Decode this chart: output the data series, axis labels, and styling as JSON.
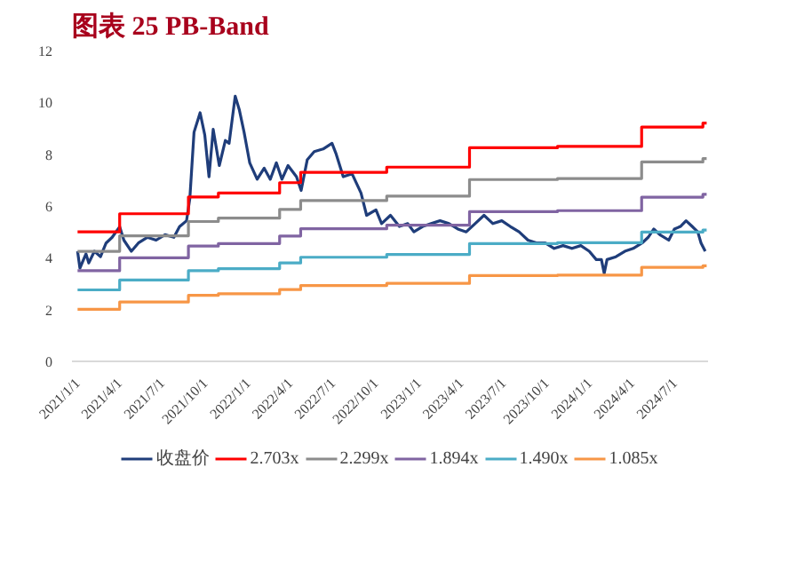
{
  "chart_data": {
    "type": "line",
    "title": "图表 25 PB-Band",
    "x": [
      "2021-01-01",
      "2021-01-06",
      "2021-01-19",
      "2021-01-25",
      "2021-02-06",
      "2021-02-19",
      "2021-03-03",
      "2021-03-16",
      "2021-04-01",
      "2021-04-10",
      "2021-04-26",
      "2021-05-11",
      "2021-05-30",
      "2021-06-18",
      "2021-07-07",
      "2021-07-26",
      "2021-08-07",
      "2021-08-22",
      "2021-08-29",
      "2021-09-07",
      "2021-09-20",
      "2021-09-30",
      "2021-10-09",
      "2021-10-18",
      "2021-10-31",
      "2021-11-13",
      "2021-11-21",
      "2021-12-04",
      "2021-12-13",
      "2021-12-23",
      "2022-01-04",
      "2022-01-20",
      "2022-02-04",
      "2022-02-17",
      "2022-03-02",
      "2022-03-14",
      "2022-03-27",
      "2022-04-14",
      "2022-04-24",
      "2022-05-07",
      "2022-05-22",
      "2022-06-10",
      "2022-06-29",
      "2022-07-08",
      "2022-07-23",
      "2022-08-11",
      "2022-08-30",
      "2022-09-11",
      "2022-10-01",
      "2022-10-13",
      "2022-11-01",
      "2022-11-20",
      "2022-12-08",
      "2022-12-21",
      "2023-01-09",
      "2023-01-27",
      "2023-02-15",
      "2023-03-06",
      "2023-03-25",
      "2023-04-12",
      "2023-05-01",
      "2023-05-20",
      "2023-06-08",
      "2023-06-27",
      "2023-07-15",
      "2023-08-03",
      "2023-08-22",
      "2023-09-10",
      "2023-09-28",
      "2023-10-17",
      "2023-11-05",
      "2023-11-24",
      "2023-12-13",
      "2023-12-31",
      "2024-01-15",
      "2024-01-26",
      "2024-02-01",
      "2024-02-07",
      "2024-02-26",
      "2024-03-16",
      "2024-04-03",
      "2024-04-22",
      "2024-05-05",
      "2024-05-17",
      "2024-05-30",
      "2024-06-18",
      "2024-06-30",
      "2024-07-13",
      "2024-07-25",
      "2024-08-07",
      "2024-08-19",
      "2024-08-26",
      "2024-09-04"
    ],
    "series": [
      {
        "name": "收盘价",
        "color": "#1f3d7a",
        "values": [
          4.25,
          3.6,
          4.15,
          3.8,
          4.25,
          4.04,
          4.57,
          4.79,
          5.2,
          4.68,
          4.25,
          4.57,
          4.79,
          4.68,
          4.89,
          4.79,
          5.2,
          5.43,
          6.28,
          8.85,
          9.6,
          8.74,
          7.13,
          8.96,
          7.56,
          8.53,
          8.42,
          10.24,
          9.7,
          8.85,
          7.67,
          7.03,
          7.46,
          7.03,
          7.67,
          7.03,
          7.56,
          7.13,
          6.6,
          7.78,
          8.1,
          8.2,
          8.42,
          8.0,
          7.13,
          7.24,
          6.5,
          5.64,
          5.85,
          5.32,
          5.64,
          5.21,
          5.32,
          5.0,
          5.21,
          5.32,
          5.43,
          5.32,
          5.11,
          5.0,
          5.32,
          5.64,
          5.32,
          5.43,
          5.21,
          5.0,
          4.68,
          4.57,
          4.57,
          4.36,
          4.47,
          4.36,
          4.47,
          4.25,
          3.93,
          3.93,
          3.4,
          3.93,
          4.04,
          4.25,
          4.36,
          4.57,
          4.79,
          5.11,
          4.89,
          4.68,
          5.11,
          5.21,
          5.43,
          5.21,
          5.0,
          4.57,
          4.25
        ]
      },
      {
        "name": "2.703x",
        "type": "step",
        "color": "#ff0000",
        "x": [
          "2021-01-01",
          "2021-04-01",
          "2021-08-26",
          "2021-10-29",
          "2022-03-09",
          "2022-04-23",
          "2022-10-24",
          "2023-04-19",
          "2023-10-24",
          "2024-04-21",
          "2024-08-30",
          "2024-09-07"
        ],
        "values": [
          5.0,
          5.7,
          6.35,
          6.5,
          6.9,
          7.3,
          7.5,
          8.25,
          8.3,
          9.05,
          9.2,
          9.2
        ]
      },
      {
        "name": "2.299x",
        "type": "step",
        "color": "#8c8c8c",
        "x": [
          "2021-01-01",
          "2021-04-01",
          "2021-08-26",
          "2021-10-29",
          "2022-03-09",
          "2022-04-23",
          "2022-10-24",
          "2023-04-19",
          "2023-10-24",
          "2024-04-21",
          "2024-08-30",
          "2024-09-07"
        ],
        "values": [
          4.25,
          4.85,
          5.4,
          5.53,
          5.87,
          6.21,
          6.38,
          7.02,
          7.06,
          7.7,
          7.83,
          7.83
        ]
      },
      {
        "name": "1.894x",
        "type": "step",
        "color": "#8064a2",
        "x": [
          "2021-01-01",
          "2021-04-01",
          "2021-08-26",
          "2021-10-29",
          "2022-03-09",
          "2022-04-23",
          "2022-10-24",
          "2023-04-19",
          "2023-10-24",
          "2024-04-21",
          "2024-08-30",
          "2024-09-07"
        ],
        "values": [
          3.5,
          4.0,
          4.45,
          4.55,
          4.84,
          5.12,
          5.26,
          5.78,
          5.82,
          6.34,
          6.45,
          6.45
        ]
      },
      {
        "name": "1.490x",
        "type": "step",
        "color": "#4bacc6",
        "x": [
          "2021-01-01",
          "2021-04-01",
          "2021-08-26",
          "2021-10-29",
          "2022-03-09",
          "2022-04-23",
          "2022-10-24",
          "2023-04-19",
          "2023-10-24",
          "2024-04-21",
          "2024-08-30",
          "2024-09-07"
        ],
        "values": [
          2.76,
          3.14,
          3.5,
          3.58,
          3.8,
          4.02,
          4.13,
          4.55,
          4.58,
          4.99,
          5.07,
          5.07
        ]
      },
      {
        "name": "1.085x",
        "type": "step",
        "color": "#f79646",
        "x": [
          "2021-01-01",
          "2021-04-01",
          "2021-08-26",
          "2021-10-29",
          "2022-03-09",
          "2022-04-23",
          "2022-10-24",
          "2023-04-19",
          "2023-10-24",
          "2024-04-21",
          "2024-08-30",
          "2024-09-07"
        ],
        "values": [
          2.01,
          2.29,
          2.55,
          2.61,
          2.77,
          2.93,
          3.01,
          3.31,
          3.33,
          3.63,
          3.69,
          3.69
        ]
      }
    ],
    "xlim": [
      "2020-12-20",
      "2024-09-10"
    ],
    "xticks": [
      {
        "value": "2021-01-01",
        "label": "2021/1/1"
      },
      {
        "value": "2021-04-01",
        "label": "2021/4/1"
      },
      {
        "value": "2021-07-01",
        "label": "2021/7/1"
      },
      {
        "value": "2021-10-01",
        "label": "2021/10/1"
      },
      {
        "value": "2022-01-01",
        "label": "2022/1/1"
      },
      {
        "value": "2022-04-01",
        "label": "2022/4/1"
      },
      {
        "value": "2022-07-01",
        "label": "2022/7/1"
      },
      {
        "value": "2022-10-01",
        "label": "2022/10/1"
      },
      {
        "value": "2023-01-01",
        "label": "2023/1/1"
      },
      {
        "value": "2023-04-01",
        "label": "2023/4/1"
      },
      {
        "value": "2023-07-01",
        "label": "2023/7/1"
      },
      {
        "value": "2023-10-01",
        "label": "2023/10/1"
      },
      {
        "value": "2024-01-01",
        "label": "2024/1/1"
      },
      {
        "value": "2024-04-01",
        "label": "2024/4/1"
      },
      {
        "value": "2024-07-01",
        "label": "2024/7/1"
      }
    ],
    "ylim": [
      0,
      12
    ],
    "yticks": [
      0,
      2,
      4,
      6,
      8,
      10,
      12
    ],
    "grid": false,
    "legend": "bottom"
  }
}
